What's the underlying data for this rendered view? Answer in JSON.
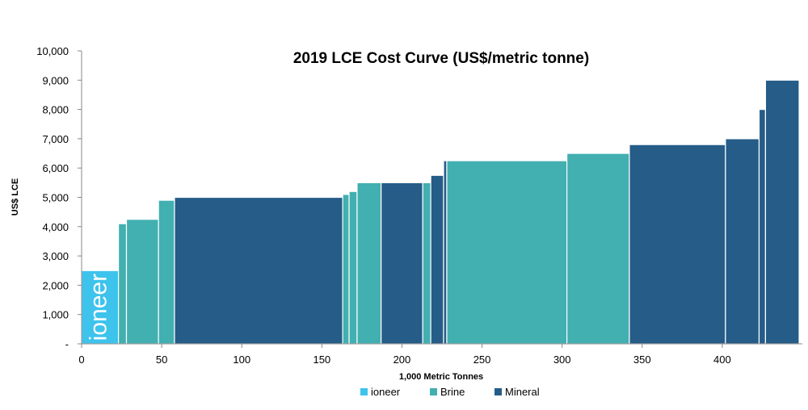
{
  "chart_data": {
    "type": "bar",
    "title": "2019 LCE Cost Curve (US$/metric tonne)",
    "xlabel": "1,000 Metric Tonnes",
    "ylabel": "US$ LCE",
    "xlim": [
      0,
      450
    ],
    "ylim": [
      0,
      10000
    ],
    "x_ticks": [
      0,
      50,
      100,
      150,
      200,
      250,
      300,
      350,
      400
    ],
    "x_tick_labels": [
      "0",
      "50",
      "100",
      "150",
      "200",
      "250",
      "300",
      "350",
      "400"
    ],
    "y_ticks": [
      0,
      1000,
      2000,
      3000,
      4000,
      5000,
      6000,
      7000,
      8000,
      9000,
      10000
    ],
    "y_tick_labels": [
      "-",
      "1,000",
      "2,000",
      "3,000",
      "4,000",
      "5,000",
      "6,000",
      "7,000",
      "8,000",
      "9,000",
      "10,000"
    ],
    "grid": false,
    "legend_position": "bottom",
    "series": [
      {
        "name": "ioneer",
        "color": "#3dc3ec"
      },
      {
        "name": "Brine",
        "color": "#42afb0"
      },
      {
        "name": "Mineral",
        "color": "#255c88"
      }
    ],
    "bars": [
      {
        "series": "ioneer",
        "x_start": 0,
        "x_end": 23,
        "value": 2500
      },
      {
        "series": "Brine",
        "x_start": 23,
        "x_end": 28,
        "value": 4100
      },
      {
        "series": "Brine",
        "x_start": 28,
        "x_end": 48,
        "value": 4250
      },
      {
        "series": "Brine",
        "x_start": 48,
        "x_end": 58,
        "value": 4900
      },
      {
        "series": "Mineral",
        "x_start": 58,
        "x_end": 163,
        "value": 5000
      },
      {
        "series": "Brine",
        "x_start": 163,
        "x_end": 167,
        "value": 5100
      },
      {
        "series": "Brine",
        "x_start": 167,
        "x_end": 172,
        "value": 5200
      },
      {
        "series": "Brine",
        "x_start": 172,
        "x_end": 187,
        "value": 5500
      },
      {
        "series": "Mineral",
        "x_start": 187,
        "x_end": 213,
        "value": 5500
      },
      {
        "series": "Brine",
        "x_start": 213,
        "x_end": 218,
        "value": 5500
      },
      {
        "series": "Mineral",
        "x_start": 218,
        "x_end": 226,
        "value": 5750
      },
      {
        "series": "Mineral",
        "x_start": 226,
        "x_end": 228,
        "value": 6250
      },
      {
        "series": "Brine",
        "x_start": 228,
        "x_end": 303,
        "value": 6250
      },
      {
        "series": "Brine",
        "x_start": 303,
        "x_end": 342,
        "value": 6500
      },
      {
        "series": "Mineral",
        "x_start": 342,
        "x_end": 402,
        "value": 6800
      },
      {
        "series": "Mineral",
        "x_start": 402,
        "x_end": 423,
        "value": 7000
      },
      {
        "series": "Mineral",
        "x_start": 423,
        "x_end": 427,
        "value": 8000
      },
      {
        "series": "Mineral",
        "x_start": 427,
        "x_end": 448,
        "value": 9000
      }
    ],
    "logo_text": "ioneer"
  }
}
